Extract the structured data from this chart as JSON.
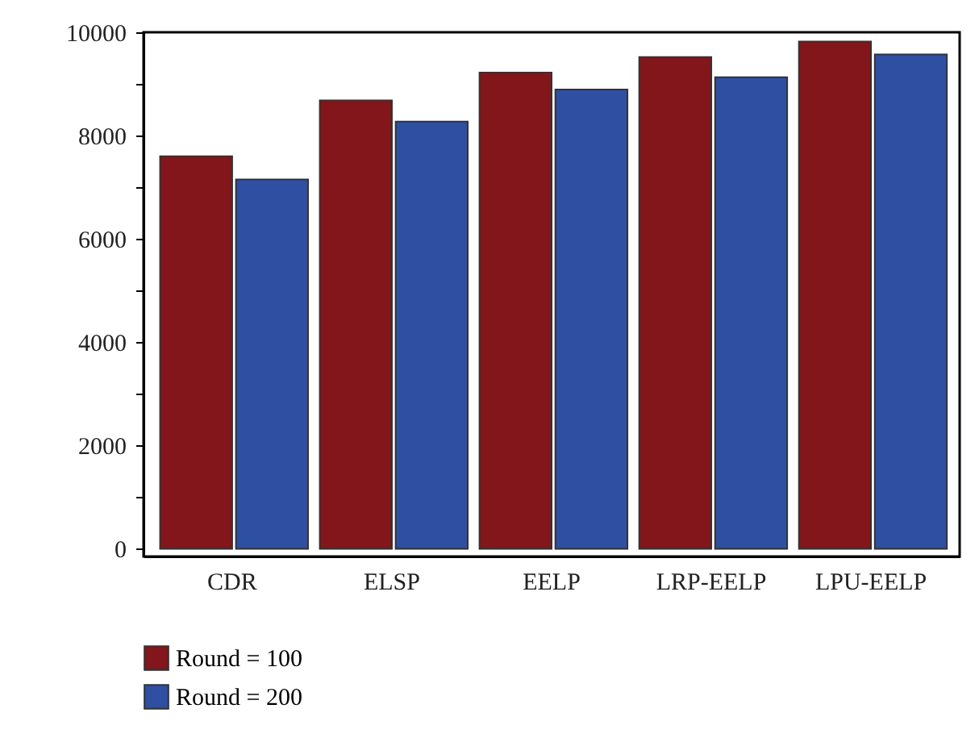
{
  "chart_data": {
    "type": "bar",
    "categories": [
      "CDR",
      "ELSP",
      "EELP",
      "LRP-EELP",
      "LPU-EELP"
    ],
    "series": [
      {
        "name": "Round = 100",
        "color": "#82161a",
        "values": [
          7600,
          8680,
          9220,
          9520,
          9820
        ]
      },
      {
        "name": "Round = 200",
        "color": "#2f4fa2",
        "values": [
          7150,
          8270,
          8890,
          9130,
          9570
        ]
      }
    ],
    "ylim": [
      -150,
      10000
    ],
    "yticks": [
      0,
      {
        "value": 1000,
        "label": null
      },
      2000,
      {
        "value": 3000,
        "label": null
      },
      4000,
      {
        "value": 5000,
        "label": null
      },
      6000,
      {
        "value": 7000,
        "label": null
      },
      8000,
      {
        "value": 9000,
        "label": null
      },
      10000
    ],
    "grid": false,
    "legend": "bottom"
  }
}
